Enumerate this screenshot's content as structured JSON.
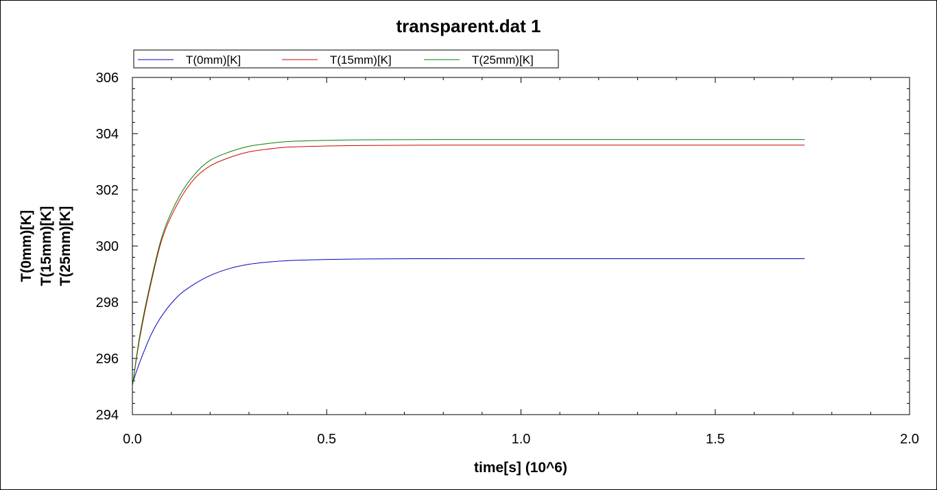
{
  "chart_data": {
    "type": "line",
    "title": "transparent.dat 1",
    "xlabel": "time[s] (10^6)",
    "ylabel": [
      "T(0mm)[K]",
      "T(15mm)[K]",
      "T(25mm)[K]"
    ],
    "xlim": [
      0.0,
      2.0
    ],
    "ylim": [
      294,
      306
    ],
    "x_ticks": [
      "0.0",
      "0.5",
      "1.0",
      "1.5",
      "2.0"
    ],
    "y_ticks": [
      "294",
      "296",
      "298",
      "300",
      "302",
      "304",
      "306"
    ],
    "grid": false,
    "legend_position": "top-left",
    "series": [
      {
        "name": "T(0mm)[K]",
        "color": "#0000c0",
        "x": [
          0.0,
          0.02,
          0.05,
          0.08,
          0.12,
          0.16,
          0.2,
          0.25,
          0.3,
          0.35,
          0.4,
          0.5,
          0.6,
          0.8,
          1.0,
          1.2,
          1.4,
          1.6,
          1.73
        ],
        "y": [
          295.1,
          295.9,
          296.9,
          297.6,
          298.25,
          298.65,
          298.95,
          299.2,
          299.35,
          299.43,
          299.48,
          299.52,
          299.54,
          299.55,
          299.55,
          299.55,
          299.55,
          299.55,
          299.55
        ]
      },
      {
        "name": "T(15mm)[K]",
        "color": "#d00000",
        "x": [
          0.0,
          0.02,
          0.05,
          0.08,
          0.12,
          0.16,
          0.2,
          0.25,
          0.3,
          0.35,
          0.4,
          0.5,
          0.6,
          0.8,
          1.0,
          1.2,
          1.4,
          1.6,
          1.73
        ],
        "y": [
          295.0,
          296.8,
          298.8,
          300.4,
          301.6,
          302.4,
          302.85,
          303.15,
          303.35,
          303.45,
          303.52,
          303.56,
          303.58,
          303.59,
          303.59,
          303.59,
          303.59,
          303.59,
          303.59
        ]
      },
      {
        "name": "T(25mm)[K]",
        "color": "#008000",
        "x": [
          0.0,
          0.02,
          0.05,
          0.08,
          0.12,
          0.16,
          0.2,
          0.25,
          0.3,
          0.35,
          0.4,
          0.5,
          0.6,
          0.8,
          1.0,
          1.2,
          1.4,
          1.6,
          1.73
        ],
        "y": [
          295.0,
          296.9,
          298.9,
          300.5,
          301.75,
          302.55,
          303.05,
          303.35,
          303.55,
          303.65,
          303.72,
          303.76,
          303.78,
          303.79,
          303.79,
          303.79,
          303.79,
          303.79,
          303.79
        ]
      }
    ]
  }
}
